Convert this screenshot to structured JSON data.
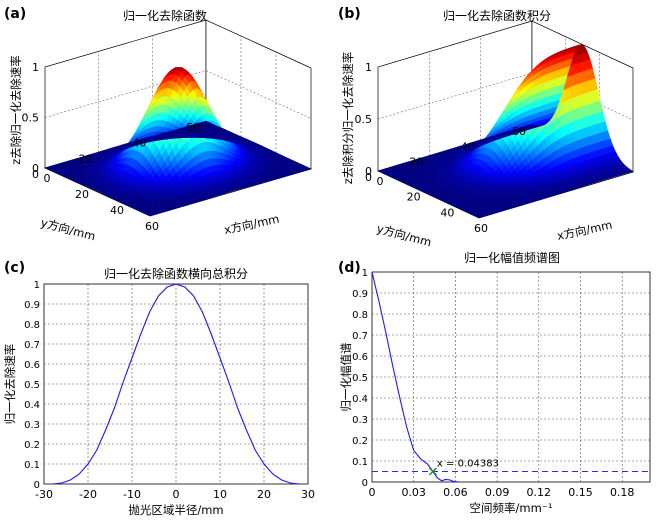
{
  "figure": {
    "panels": [
      {
        "id": "a",
        "label": "(a)"
      },
      {
        "id": "b",
        "label": "(b)"
      },
      {
        "id": "c",
        "label": "(c)"
      },
      {
        "id": "d",
        "label": "(d)"
      }
    ]
  },
  "chart_data": [
    {
      "id": "a",
      "type": "surface",
      "title": "归一化去除函数",
      "xlabel": "x方向/mm",
      "ylabel": "y方向/mm",
      "zlabel": "z去除归一化去除速率",
      "xlim": [
        0,
        60
      ],
      "ylim": [
        0,
        60
      ],
      "zlim": [
        0,
        1
      ],
      "xticks": [
        "0",
        "20",
        "40",
        "60"
      ],
      "yticks": [
        "0",
        "20",
        "40",
        "60"
      ],
      "zticks": [
        "0",
        "0.5",
        "1"
      ],
      "shape": "gaussian-peak",
      "peak": {
        "x": 30,
        "y": 30,
        "z": 1
      },
      "colormap": "jet",
      "grid": true
    },
    {
      "id": "b",
      "type": "surface",
      "title": "归一化去除函数积分",
      "xlabel": "x方向/mm",
      "ylabel": "y方向/mm",
      "zlabel": "z去除积分归一化去除速率",
      "xlim": [
        0,
        60
      ],
      "ylim": [
        0,
        60
      ],
      "zlim": [
        0,
        1
      ],
      "xticks": [
        "0",
        "20",
        "40",
        "60"
      ],
      "yticks": [
        "0",
        "20",
        "40",
        "60"
      ],
      "zticks": [
        "0",
        "0.5",
        "1"
      ],
      "shape": "gaussian-ridge",
      "colormap": "jet",
      "grid": true
    },
    {
      "id": "c",
      "type": "line",
      "title": "归一化去除函数横向总积分",
      "xlabel": "抛光区域半径/mm",
      "ylabel": "归一化去除速率",
      "xlim": [
        -30,
        30
      ],
      "ylim": [
        0,
        1
      ],
      "xticks": [
        "-30",
        "-20",
        "-10",
        "0",
        "10",
        "20",
        "30"
      ],
      "yticks": [
        "0",
        "0.1",
        "0.2",
        "0.3",
        "0.4",
        "0.5",
        "0.6",
        "0.7",
        "0.8",
        "0.9",
        "1"
      ],
      "grid": true,
      "series": [
        {
          "color": "#1a1aff",
          "x": [
            -28,
            -26,
            -24,
            -22,
            -20,
            -18,
            -16,
            -14,
            -12,
            -10,
            -8,
            -6,
            -4,
            -2,
            0,
            2,
            4,
            6,
            8,
            10,
            12,
            14,
            16,
            18,
            20,
            22,
            24,
            26,
            28
          ],
          "y": [
            0.0,
            0.005,
            0.02,
            0.05,
            0.1,
            0.17,
            0.27,
            0.38,
            0.51,
            0.63,
            0.75,
            0.86,
            0.94,
            0.985,
            1.0,
            0.985,
            0.94,
            0.86,
            0.75,
            0.63,
            0.51,
            0.38,
            0.27,
            0.17,
            0.1,
            0.05,
            0.02,
            0.005,
            0.0
          ]
        }
      ]
    },
    {
      "id": "d",
      "type": "line",
      "title": "归一化幅值频谱图",
      "xlabel": "空间频率/mm⁻¹",
      "ylabel": "归一化幅值谱",
      "xlim": [
        0,
        0.2
      ],
      "ylim": [
        0,
        1
      ],
      "xticks": [
        "0",
        "0.03",
        "0.06",
        "0.09",
        "0.12",
        "0.15",
        "0.18"
      ],
      "yticks": [
        "0",
        "0.1",
        "0.2",
        "0.3",
        "0.4",
        "0.5",
        "0.6",
        "0.7",
        "0.8",
        "0.9",
        "1"
      ],
      "grid": true,
      "series": [
        {
          "color": "#1a1aff",
          "x": [
            0,
            0.005,
            0.01,
            0.015,
            0.02,
            0.025,
            0.03,
            0.035,
            0.04,
            0.04383,
            0.047,
            0.05,
            0.053,
            0.056,
            0.058,
            0.06,
            0.062
          ],
          "y": [
            1.0,
            0.86,
            0.71,
            0.55,
            0.4,
            0.26,
            0.15,
            0.11,
            0.085,
            0.05,
            0.02,
            0.006,
            0.012,
            0.01,
            0.004,
            0.002,
            0.0
          ]
        }
      ],
      "threshold": {
        "y": 0.05,
        "style": "dashed"
      },
      "marker": {
        "x": 0.04383,
        "y": 0.05,
        "label": "x = 0.04383"
      }
    }
  ]
}
